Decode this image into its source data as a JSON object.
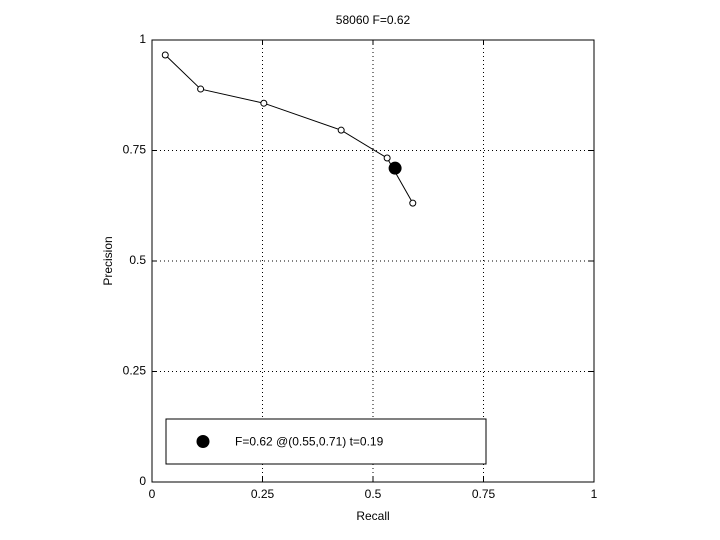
{
  "chart_data": {
    "type": "line",
    "title": "58060 F=0.62",
    "x_label": "Recall",
    "y_label": "Precision",
    "xlim": [
      0,
      1
    ],
    "ylim": [
      0,
      1
    ],
    "xticks": [
      0,
      0.25,
      0.5,
      0.75,
      1
    ],
    "yticks": [
      0,
      0.25,
      0.5,
      0.75,
      1
    ],
    "grid": true,
    "legend": "lower left",
    "series": [
      {
        "color": "#000000",
        "marker": "open-circle",
        "x": [
          0.03,
          0.11,
          0.253,
          0.428,
          0.532,
          0.59
        ],
        "values": [
          0.966,
          0.889,
          0.857,
          0.796,
          0.733,
          0.631
        ]
      },
      {
        "name": "F=0.62 @(0.55,0.71) t=0.19",
        "color": "#000000",
        "marker": "filled-circle",
        "x": [
          0.55
        ],
        "values": [
          0.71
        ]
      }
    ]
  }
}
